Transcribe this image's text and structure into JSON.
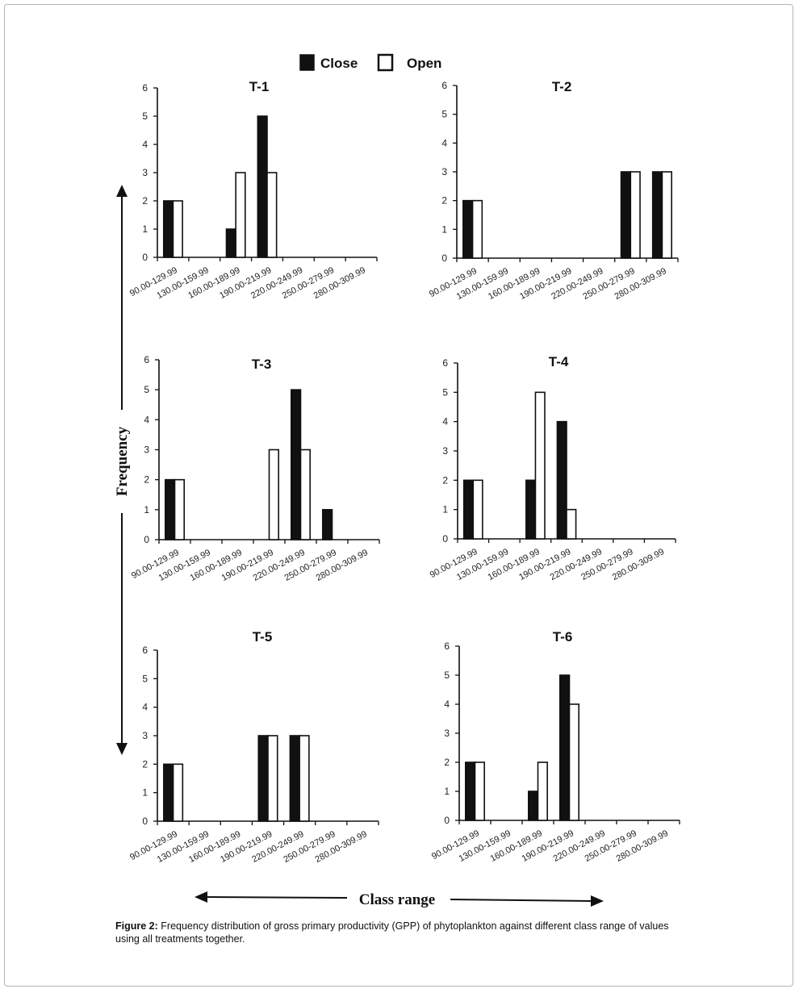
{
  "legend": [
    {
      "name": "Close",
      "fill": "#111111"
    },
    {
      "name": "Open",
      "fill": "#ffffff"
    }
  ],
  "y_axis_label": "Frequency",
  "x_axis_label": "Class range",
  "caption": {
    "label": "Figure 2:",
    "text": "Frequency distribution of gross primary productivity (GPP) of phytoplankton against different class range of values using all treatments together."
  },
  "colors": {
    "close": "#111111",
    "open": "#ffffff",
    "stroke": "#111111"
  },
  "chart_data": [
    {
      "type": "bar",
      "title": "T-1",
      "categories": [
        "90.00-129.99",
        "130.00-159.99",
        "160.00-189.99",
        "190.00-219.99",
        "220.00-249.99",
        "250.00-279.99",
        "280.00-309.99"
      ],
      "ylim": [
        0,
        6
      ],
      "series": [
        {
          "name": "Close",
          "values": [
            2,
            0,
            1,
            5,
            0,
            0,
            0
          ]
        },
        {
          "name": "Open",
          "values": [
            2,
            0,
            3,
            3,
            0,
            0,
            0
          ]
        }
      ]
    },
    {
      "type": "bar",
      "title": "T-2",
      "categories": [
        "90.00-129.99",
        "130.00-159.99",
        "160.00-189.99",
        "190.00-219.99",
        "220.00-249.99",
        "250.00-279.99",
        "280.00-309.99"
      ],
      "ylim": [
        0,
        6
      ],
      "series": [
        {
          "name": "Close",
          "values": [
            2,
            0,
            0,
            0,
            0,
            3,
            3
          ]
        },
        {
          "name": "Open",
          "values": [
            2,
            0,
            0,
            0,
            0,
            3,
            3
          ]
        }
      ]
    },
    {
      "type": "bar",
      "title": "T-3",
      "categories": [
        "90.00-129.99",
        "130.00-159.99",
        "160.00-189.99",
        "190.00-219.99",
        "220.00-249.99",
        "250.00-279.99",
        "280.00-309.99"
      ],
      "ylim": [
        0,
        6
      ],
      "series": [
        {
          "name": "Close",
          "values": [
            2,
            0,
            0,
            0,
            5,
            1,
            0
          ]
        },
        {
          "name": "Open",
          "values": [
            2,
            0,
            0,
            3,
            3,
            0,
            0
          ]
        }
      ]
    },
    {
      "type": "bar",
      "title": "T-4",
      "categories": [
        "90.00-129.99",
        "130.00-159.99",
        "160.00-189.99",
        "190.00-219.99",
        "220.00-249.99",
        "250.00-279.99",
        "280.00-309.99"
      ],
      "ylim": [
        0,
        6
      ],
      "series": [
        {
          "name": "Close",
          "values": [
            2,
            0,
            2,
            4,
            0,
            0,
            0
          ]
        },
        {
          "name": "Open",
          "values": [
            2,
            0,
            5,
            1,
            0,
            0,
            0
          ]
        }
      ]
    },
    {
      "type": "bar",
      "title": "T-5",
      "categories": [
        "90.00-129.99",
        "130.00-159.99",
        "160.00-189.99",
        "190.00-219.99",
        "220.00-249.99",
        "250.00-279.99",
        "280.00-309.99"
      ],
      "ylim": [
        0,
        6
      ],
      "series": [
        {
          "name": "Close",
          "values": [
            2,
            0,
            0,
            3,
            3,
            0,
            0
          ]
        },
        {
          "name": "Open",
          "values": [
            2,
            0,
            0,
            3,
            3,
            0,
            0
          ]
        }
      ]
    },
    {
      "type": "bar",
      "title": "T-6",
      "categories": [
        "90.00-129.99",
        "130.00-159.99",
        "160.00-189.99",
        "190.00-219.99",
        "220.00-249.99",
        "250.00-279.99",
        "280.00-309.99"
      ],
      "ylim": [
        0,
        6
      ],
      "series": [
        {
          "name": "Close",
          "values": [
            2,
            0,
            1,
            5,
            0,
            0,
            0
          ]
        },
        {
          "name": "Open",
          "values": [
            2,
            0,
            2,
            4,
            0,
            0,
            0
          ]
        }
      ]
    }
  ]
}
